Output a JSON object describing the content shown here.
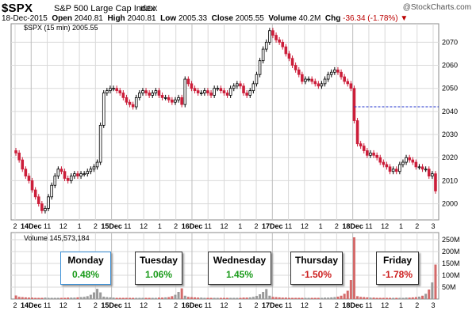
{
  "header": {
    "symbol": "$SPX",
    "name": "S&P 500 Large Cap Index",
    "exchange": "INDX",
    "brand": "@StockCharts.com",
    "date": "18-Dec-2015",
    "open_label": "Open",
    "open": "2040.81",
    "high_label": "High",
    "high": "2040.81",
    "low_label": "Low",
    "low": "2005.33",
    "close_label": "Close",
    "close": "2005.55",
    "volume_label": "Volume",
    "volume": "40.2M",
    "chg_label": "Chg",
    "chg": "-36.34 (-1.78%)"
  },
  "price_legend": "$SPX (15 min) 2005.55",
  "volume_legend": "Volume 145,573,184",
  "colors": {
    "up": "#000000",
    "down": "#cc1e3a",
    "vol_up": "#9a9a9a",
    "vol_down": "#d46a6a",
    "ref_line": "#2233cc",
    "grid": "#d9d9d9"
  },
  "day_boxes": [
    {
      "day": "Monday",
      "pct": "0.48%",
      "color": "#1a9a1a",
      "highlight": "#3a8fd6"
    },
    {
      "day": "Tuesday",
      "pct": "1.06%",
      "color": "#1a9a1a",
      "highlight": ""
    },
    {
      "day": "Wednesday",
      "pct": "1.45%",
      "color": "#1a9a1a",
      "highlight": ""
    },
    {
      "day": "Thursday",
      "pct": "-1.50%",
      "color": "#cc1e1e",
      "highlight": ""
    },
    {
      "day": "Friday",
      "pct": "-1.78%",
      "color": "#cc1e1e",
      "highlight": ""
    }
  ],
  "chart_data": [
    {
      "type": "candlestick",
      "title": "$SPX (15 min) 2005.55",
      "ylim": [
        1993,
        2078
      ],
      "y_ticks": [
        2000,
        2010,
        2020,
        2030,
        2040,
        2050,
        2060,
        2070
      ],
      "reference_line": {
        "value": 2042,
        "start_day": "18Dec"
      },
      "x_tick_labels": [
        "2",
        "14Dec",
        "11",
        "12",
        "1",
        "2",
        "15Dec",
        "11",
        "12",
        "1",
        "2",
        "16Dec",
        "11",
        "12",
        "1",
        "2",
        "17Dec",
        "11",
        "12",
        "1",
        "2",
        "18Dec",
        "11",
        "12",
        "1",
        "2",
        "3"
      ],
      "days": [
        {
          "label": "14Dec",
          "close_path": [
            2022,
            2019,
            2015,
            2012,
            2010,
            2006,
            2003,
            2000,
            1997,
            1998,
            2003,
            2008,
            2012,
            2015,
            2014,
            2011,
            2010,
            2012,
            2013,
            2012,
            2013,
            2013,
            2014,
            2015,
            2016,
            2018
          ]
        },
        {
          "label": "15Dec",
          "close_path": [
            2034,
            2048,
            2049,
            2050,
            2050,
            2049,
            2048,
            2046,
            2044,
            2043,
            2042,
            2046,
            2048,
            2049,
            2048,
            2047,
            2048,
            2049,
            2047,
            2046,
            2046,
            2045,
            2044,
            2045,
            2046,
            2043
          ]
        },
        {
          "label": "16Dec",
          "close_path": [
            2054,
            2052,
            2050,
            2049,
            2048,
            2048,
            2049,
            2048,
            2047,
            2050,
            2050,
            2049,
            2048,
            2047,
            2050,
            2051,
            2052,
            2051,
            2048,
            2047,
            2049,
            2052,
            2056,
            2062,
            2067,
            2070
          ]
        },
        {
          "label": "17Dec",
          "close_path": [
            2075,
            2073,
            2071,
            2070,
            2068,
            2065,
            2063,
            2060,
            2058,
            2056,
            2053,
            2054,
            2054,
            2053,
            2052,
            2051,
            2052,
            2054,
            2056,
            2057,
            2058,
            2057,
            2055,
            2053,
            2052,
            2050
          ]
        },
        {
          "label": "18Dec",
          "close_path": [
            2036,
            2026,
            2025,
            2023,
            2021,
            2022,
            2021,
            2020,
            2018,
            2017,
            2016,
            2014,
            2015,
            2014,
            2017,
            2018,
            2020,
            2019,
            2018,
            2016,
            2016,
            2015,
            2015,
            2012,
            2013,
            2005.55
          ]
        }
      ]
    },
    {
      "type": "bar",
      "title": "Volume 145,573,184",
      "ylim": [
        0,
        280
      ],
      "y_ticks": [
        50,
        100,
        150,
        200,
        250
      ],
      "y_tick_labels": [
        "50M",
        "100M",
        "150M",
        "200M",
        "250M"
      ],
      "unit": "M",
      "days": [
        {
          "label": "14Dec",
          "values": [
            15,
            9,
            8,
            7,
            6,
            6,
            5,
            5,
            5,
            6,
            5,
            5,
            5,
            5,
            5,
            5,
            6,
            6,
            6,
            7,
            8,
            9,
            12,
            18,
            28,
            43
          ]
        },
        {
          "label": "15Dec",
          "values": [
            28,
            10,
            8,
            7,
            6,
            5,
            5,
            5,
            5,
            5,
            5,
            5,
            5,
            5,
            5,
            5,
            5,
            5,
            6,
            6,
            7,
            8,
            12,
            18,
            30,
            45
          ]
        },
        {
          "label": "16Dec",
          "values": [
            14,
            9,
            8,
            7,
            6,
            6,
            5,
            5,
            5,
            5,
            5,
            5,
            5,
            5,
            5,
            5,
            5,
            5,
            6,
            6,
            7,
            9,
            13,
            20,
            30,
            42
          ]
        },
        {
          "label": "17Dec",
          "values": [
            14,
            9,
            8,
            7,
            6,
            6,
            5,
            5,
            5,
            5,
            5,
            5,
            5,
            5,
            5,
            5,
            5,
            6,
            6,
            7,
            8,
            10,
            14,
            22,
            35,
            80
          ]
        },
        {
          "label": "18Dec",
          "values": [
            260,
            12,
            9,
            8,
            7,
            6,
            6,
            5,
            5,
            5,
            5,
            5,
            5,
            5,
            5,
            5,
            6,
            6,
            7,
            8,
            10,
            14,
            22,
            40,
            70,
            145
          ]
        }
      ]
    }
  ]
}
